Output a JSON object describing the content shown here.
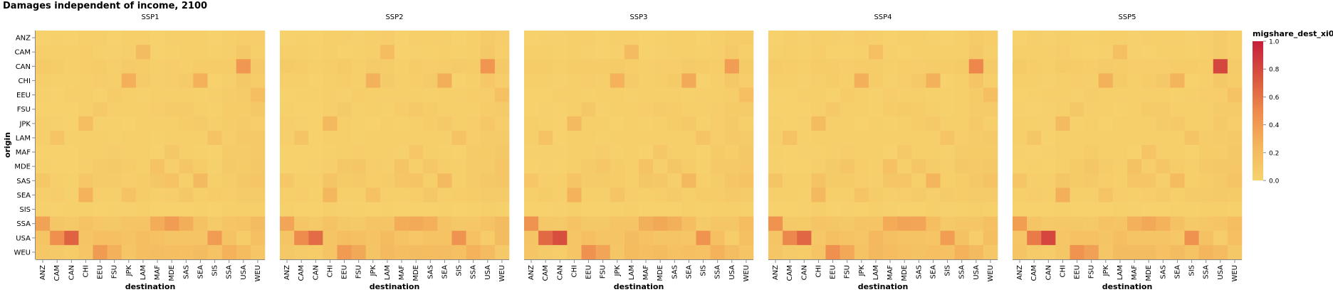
{
  "chart_data": {
    "type": "heatmap",
    "title": "Damages independent of income, 2100",
    "xlabel": "destination",
    "ylabel": "origin",
    "facets": [
      "SSP1",
      "SSP2",
      "SSP3",
      "SSP4",
      "SSP5"
    ],
    "regions": [
      "ANZ",
      "CAM",
      "CAN",
      "CHI",
      "EEU",
      "FSU",
      "JPK",
      "LAM",
      "MAF",
      "MDE",
      "SAS",
      "SEA",
      "SIS",
      "SSA",
      "USA",
      "WEU"
    ],
    "legend": {
      "title": "migshare_dest_xi0",
      "ticks": [
        "1.0",
        "0.8",
        "0.6",
        "0.4",
        "0.2",
        "0.0"
      ],
      "domain": [
        0,
        1
      ],
      "colors": [
        "#f6d36d",
        "#f4b55c",
        "#ee8a4c",
        "#d9533f",
        "#c51f3b"
      ],
      "placement": "right"
    },
    "base_matrix": [
      [
        0.02,
        0.03,
        0.02,
        0.04,
        0.03,
        0.02,
        0.04,
        0.04,
        0.02,
        0.03,
        0.04,
        0.03,
        0.02,
        0.04,
        0.06,
        0.05
      ],
      [
        0.03,
        0.04,
        0.03,
        0.05,
        0.02,
        0.02,
        0.03,
        0.18,
        0.02,
        0.02,
        0.03,
        0.04,
        0.03,
        0.04,
        0.09,
        0.04
      ],
      [
        0.06,
        0.06,
        0.04,
        0.06,
        0.06,
        0.05,
        0.06,
        0.06,
        0.04,
        0.05,
        0.05,
        0.06,
        0.06,
        0.06,
        0.45,
        0.08
      ],
      [
        0.04,
        0.03,
        0.02,
        0.04,
        0.05,
        0.04,
        0.25,
        0.07,
        0.03,
        0.05,
        0.08,
        0.28,
        0.02,
        0.04,
        0.1,
        0.05
      ],
      [
        0.02,
        0.02,
        0.03,
        0.04,
        0.02,
        0.05,
        0.04,
        0.03,
        0.04,
        0.04,
        0.03,
        0.03,
        0.03,
        0.05,
        0.06,
        0.15
      ],
      [
        0.02,
        0.02,
        0.02,
        0.04,
        0.08,
        0.03,
        0.04,
        0.03,
        0.05,
        0.08,
        0.06,
        0.04,
        0.03,
        0.05,
        0.06,
        0.08
      ],
      [
        0.03,
        0.02,
        0.02,
        0.2,
        0.03,
        0.03,
        0.02,
        0.04,
        0.03,
        0.04,
        0.06,
        0.08,
        0.03,
        0.05,
        0.09,
        0.05
      ],
      [
        0.04,
        0.12,
        0.02,
        0.04,
        0.04,
        0.03,
        0.04,
        0.04,
        0.03,
        0.04,
        0.04,
        0.04,
        0.12,
        0.05,
        0.08,
        0.08
      ],
      [
        0.02,
        0.02,
        0.02,
        0.03,
        0.04,
        0.05,
        0.03,
        0.04,
        0.02,
        0.1,
        0.04,
        0.03,
        0.02,
        0.07,
        0.06,
        0.08
      ],
      [
        0.02,
        0.02,
        0.02,
        0.04,
        0.08,
        0.1,
        0.05,
        0.04,
        0.14,
        0.04,
        0.1,
        0.06,
        0.03,
        0.08,
        0.08,
        0.1
      ],
      [
        0.1,
        0.04,
        0.03,
        0.12,
        0.06,
        0.08,
        0.05,
        0.05,
        0.1,
        0.12,
        0.04,
        0.22,
        0.04,
        0.06,
        0.1,
        0.12
      ],
      [
        0.04,
        0.05,
        0.03,
        0.25,
        0.04,
        0.03,
        0.14,
        0.05,
        0.04,
        0.05,
        0.08,
        0.04,
        0.06,
        0.06,
        0.08,
        0.07
      ],
      [
        0.02,
        0.02,
        0.02,
        0.03,
        0.02,
        0.02,
        0.02,
        0.03,
        0.02,
        0.02,
        0.02,
        0.03,
        0.02,
        0.03,
        0.04,
        0.03
      ],
      [
        0.4,
        0.1,
        0.08,
        0.12,
        0.1,
        0.1,
        0.12,
        0.12,
        0.28,
        0.35,
        0.3,
        0.15,
        0.08,
        0.12,
        0.12,
        0.18
      ],
      [
        0.12,
        0.52,
        0.62,
        0.12,
        0.15,
        0.14,
        0.12,
        0.2,
        0.14,
        0.12,
        0.12,
        0.12,
        0.4,
        0.15,
        0.05,
        0.18
      ],
      [
        0.1,
        0.08,
        0.06,
        0.12,
        0.42,
        0.32,
        0.12,
        0.2,
        0.18,
        0.18,
        0.16,
        0.18,
        0.15,
        0.25,
        0.2,
        0.1
      ]
    ]
  }
}
